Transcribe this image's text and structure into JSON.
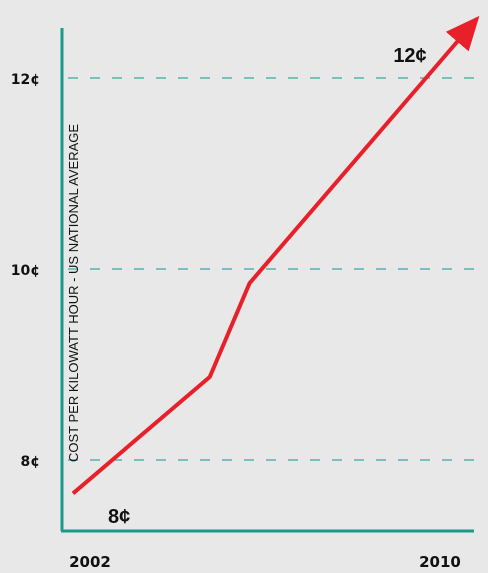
{
  "chart_data": {
    "type": "line",
    "title": "",
    "ylabel": "COST PER KILOWATT HOUR - US NATIONAL AVERAGE",
    "xlabel": "",
    "x_tick_labels": [
      "2002",
      "2010"
    ],
    "y_ticks": [
      {
        "value": 8,
        "label": "8¢"
      },
      {
        "value": 10,
        "label": "10¢"
      },
      {
        "value": 12,
        "label": "12¢"
      }
    ],
    "xlim": [
      2002,
      2010
    ],
    "ylim": [
      7.6,
      12.6
    ],
    "grid": "horizontal dashed",
    "series": [
      {
        "x": [
          2002,
          2005.1,
          2006.0,
          2010.0
        ],
        "values": [
          7.65,
          8.87,
          9.85,
          12.0
        ],
        "color": "#e8202a",
        "ends_with_arrow": true
      }
    ],
    "annotations": [
      {
        "text": "8¢",
        "x": 2002,
        "value": 7.65
      },
      {
        "text": "12¢",
        "x": 2010,
        "value": 12.0
      }
    ],
    "colors": {
      "axis": "#1a9a8a",
      "grid": "#3aa8a0",
      "line": "#e8202a",
      "background": "#e8e8e8"
    }
  }
}
